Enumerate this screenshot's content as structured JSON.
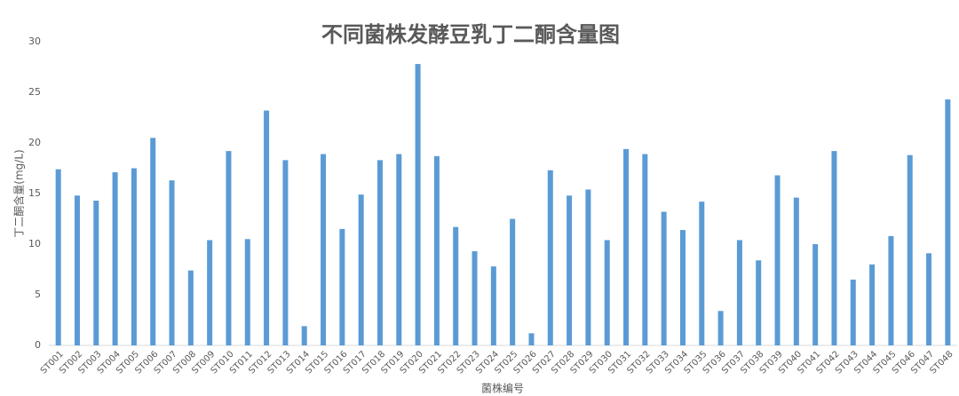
{
  "chart_data": {
    "type": "bar",
    "title": "不同菌株发酵豆乳丁二酮含量图",
    "x_label": "菌株编号",
    "y_label": "丁二酮含量(mg/L)",
    "categories": [
      "ST001",
      "ST002",
      "ST003",
      "ST004",
      "ST005",
      "ST006",
      "ST007",
      "ST008",
      "ST009",
      "ST010",
      "ST011",
      "ST012",
      "ST013",
      "ST014",
      "ST015",
      "ST016",
      "ST017",
      "ST018",
      "ST019",
      "ST020",
      "ST021",
      "ST022",
      "ST023",
      "ST024",
      "ST025",
      "ST026",
      "ST027",
      "ST028",
      "ST029",
      "ST030",
      "ST031",
      "ST032",
      "ST033",
      "ST034",
      "ST035",
      "ST036",
      "ST037",
      "ST038",
      "ST039",
      "ST040",
      "ST041",
      "ST042",
      "ST043",
      "ST044",
      "ST045",
      "ST046",
      "ST047",
      "ST048"
    ],
    "values": [
      17.4,
      14.8,
      14.3,
      17.1,
      17.5,
      20.5,
      16.3,
      7.4,
      10.4,
      19.2,
      10.5,
      23.2,
      18.3,
      1.9,
      18.9,
      11.5,
      14.9,
      18.3,
      18.9,
      27.8,
      18.7,
      11.7,
      9.3,
      7.8,
      12.5,
      1.2,
      17.3,
      14.8,
      15.4,
      10.4,
      19.4,
      18.9,
      13.2,
      11.4,
      14.2,
      3.4,
      10.4,
      8.4,
      16.8,
      14.6,
      10.0,
      19.2,
      6.5,
      8.0,
      10.8,
      18.8,
      9.1,
      24.3
    ],
    "color": "#5b9bd5",
    "ylim": [
      0,
      30
    ],
    "yticks": [
      0,
      5,
      10,
      15,
      20,
      25,
      30
    ],
    "grid": false
  }
}
